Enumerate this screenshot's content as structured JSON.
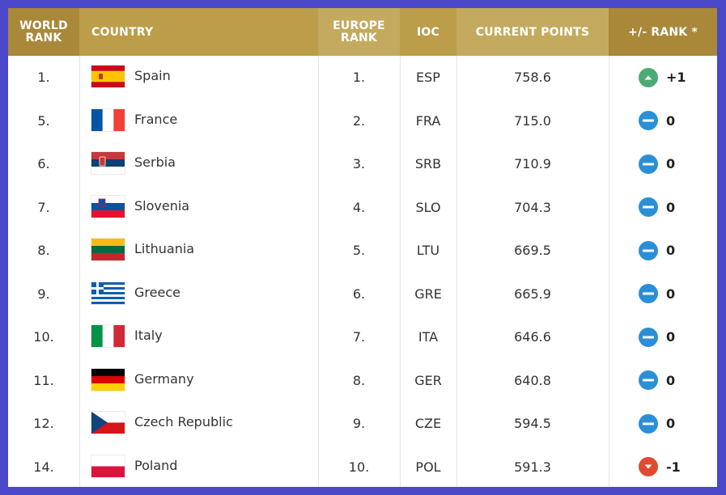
{
  "headers": {
    "world_rank": "WORLD RANK",
    "country": "COUNTRY",
    "europe_rank": "EUROPE RANK",
    "ioc": "IOC",
    "current_points": "CURRENT POINTS",
    "rank_change": "+/- RANK *"
  },
  "colors": {
    "header_gold": "#bb9d4a",
    "header_dark_gold": "#a9883a",
    "up": "#4caa75",
    "same": "#2a8fd6",
    "down": "#e14a2e",
    "border": "#4a47c9"
  },
  "rows": [
    {
      "world_rank": "1.",
      "country": "Spain",
      "flag": "spain-flag-icon",
      "europe_rank": "1.",
      "ioc": "ESP",
      "points": "758.6",
      "trend": "up",
      "trend_icon": "arrow-up-icon",
      "change": "+1"
    },
    {
      "world_rank": "5.",
      "country": "France",
      "flag": "france-flag-icon",
      "europe_rank": "2.",
      "ioc": "FRA",
      "points": "715.0",
      "trend": "same",
      "trend_icon": "minus-icon",
      "change": "0"
    },
    {
      "world_rank": "6.",
      "country": "Serbia",
      "flag": "serbia-flag-icon",
      "europe_rank": "3.",
      "ioc": "SRB",
      "points": "710.9",
      "trend": "same",
      "trend_icon": "minus-icon",
      "change": "0"
    },
    {
      "world_rank": "7.",
      "country": "Slovenia",
      "flag": "slovenia-flag-icon",
      "europe_rank": "4.",
      "ioc": "SLO",
      "points": "704.3",
      "trend": "same",
      "trend_icon": "minus-icon",
      "change": "0"
    },
    {
      "world_rank": "8.",
      "country": "Lithuania",
      "flag": "lithuania-flag-icon",
      "europe_rank": "5.",
      "ioc": "LTU",
      "points": "669.5",
      "trend": "same",
      "trend_icon": "minus-icon",
      "change": "0"
    },
    {
      "world_rank": "9.",
      "country": "Greece",
      "flag": "greece-flag-icon",
      "europe_rank": "6.",
      "ioc": "GRE",
      "points": "665.9",
      "trend": "same",
      "trend_icon": "minus-icon",
      "change": "0"
    },
    {
      "world_rank": "10.",
      "country": "Italy",
      "flag": "italy-flag-icon",
      "europe_rank": "7.",
      "ioc": "ITA",
      "points": "646.6",
      "trend": "same",
      "trend_icon": "minus-icon",
      "change": "0"
    },
    {
      "world_rank": "11.",
      "country": "Germany",
      "flag": "germany-flag-icon",
      "europe_rank": "8.",
      "ioc": "GER",
      "points": "640.8",
      "trend": "same",
      "trend_icon": "minus-icon",
      "change": "0"
    },
    {
      "world_rank": "12.",
      "country": "Czech Republic",
      "flag": "czech-flag-icon",
      "europe_rank": "9.",
      "ioc": "CZE",
      "points": "594.5",
      "trend": "same",
      "trend_icon": "minus-icon",
      "change": "0"
    },
    {
      "world_rank": "14.",
      "country": "Poland",
      "flag": "poland-flag-icon",
      "europe_rank": "10.",
      "ioc": "POL",
      "points": "591.3",
      "trend": "down",
      "trend_icon": "arrow-down-icon",
      "change": "-1"
    }
  ]
}
